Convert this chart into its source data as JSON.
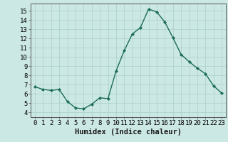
{
  "x": [
    0,
    1,
    2,
    3,
    4,
    5,
    6,
    7,
    8,
    9,
    10,
    11,
    12,
    13,
    14,
    15,
    16,
    17,
    18,
    19,
    20,
    21,
    22,
    23
  ],
  "y": [
    6.8,
    6.5,
    6.4,
    6.5,
    5.2,
    4.5,
    4.4,
    4.9,
    5.6,
    5.5,
    8.5,
    10.7,
    12.5,
    13.2,
    15.2,
    14.9,
    13.8,
    12.1,
    10.3,
    9.5,
    8.8,
    8.2,
    6.9,
    6.1
  ],
  "line_color": "#1a6b5a",
  "marker": "D",
  "marker_size": 2,
  "bg_color": "#cce8e4",
  "grid_color": "#aacfca",
  "xlabel": "Humidex (Indice chaleur)",
  "xlim": [
    -0.5,
    23.5
  ],
  "ylim": [
    3.5,
    15.8
  ],
  "xticks": [
    0,
    1,
    2,
    3,
    4,
    5,
    6,
    7,
    8,
    9,
    10,
    11,
    12,
    13,
    14,
    15,
    16,
    17,
    18,
    19,
    20,
    21,
    22,
    23
  ],
  "yticks": [
    4,
    5,
    6,
    7,
    8,
    9,
    10,
    11,
    12,
    13,
    14,
    15
  ],
  "tick_fontsize": 6.5,
  "xlabel_fontsize": 7.5
}
